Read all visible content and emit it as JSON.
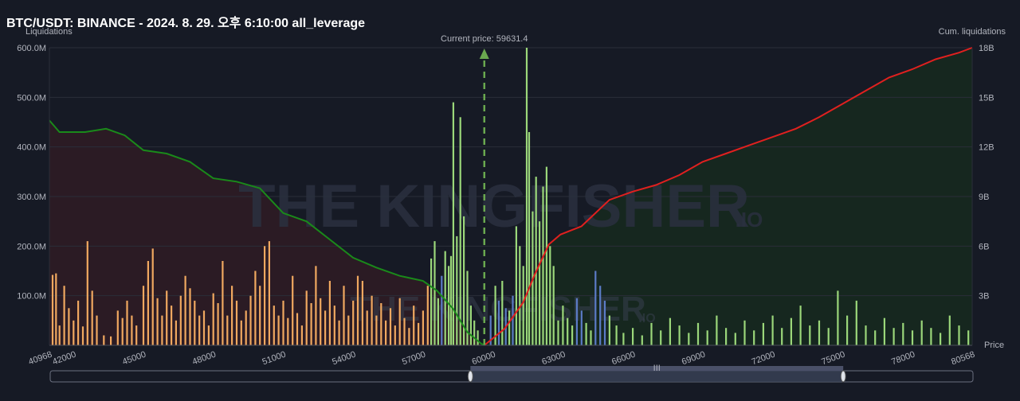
{
  "header": {
    "title": "BTC/USDT: BINANCE - 2024. 8. 29. 오후 6:10:00 all_leverage"
  },
  "watermark": {
    "brand": "THE KINGFISHER",
    "suffix": ".IO"
  },
  "colors": {
    "background": "#161a25",
    "short_bars": "#f0a860",
    "long_bars": "#9bd77a",
    "mid_bars": "#5b7bc6",
    "cum_short_line": "#1a8a1a",
    "cum_long_line": "#e0201f",
    "cum_short_area": "#2b1b24",
    "cum_long_area": "#16271f",
    "current_price_marker": "#6aa84f"
  },
  "chart_data": {
    "type": "bar",
    "xlabel": "Price",
    "ylabel_left": "Liquidations",
    "ylabel_right": "Cum. liquidations",
    "x_range": [
      40968,
      80568
    ],
    "x_ticks": [
      "40968",
      "42000",
      "45000",
      "48000",
      "51000",
      "54000",
      "57000",
      "60000",
      "63000",
      "66000",
      "69000",
      "72000",
      "75000",
      "78000",
      "80568"
    ],
    "left_ticks": [
      "100.0M",
      "200.0M",
      "300.0M",
      "400.0M",
      "500.0M",
      "600.0M"
    ],
    "left_ylim_millions": [
      0,
      600
    ],
    "right_ticks": [
      "3B",
      "6B",
      "9B",
      "12B",
      "15B",
      "18B"
    ],
    "right_ylim_billions": [
      0,
      18
    ],
    "current_price": {
      "label": "Current price: 59631.4",
      "value": 59631.4
    },
    "cum_short": {
      "name": "short side cumulative",
      "points": [
        [
          40968,
          13.6
        ],
        [
          41400,
          12.9
        ],
        [
          42500,
          12.9
        ],
        [
          43400,
          13.1
        ],
        [
          44200,
          12.7
        ],
        [
          45000,
          11.8
        ],
        [
          46000,
          11.6
        ],
        [
          47000,
          11.1
        ],
        [
          48000,
          10.1
        ],
        [
          49000,
          9.9
        ],
        [
          50000,
          9.5
        ],
        [
          51000,
          8.0
        ],
        [
          52000,
          7.5
        ],
        [
          53000,
          6.4
        ],
        [
          54000,
          5.3
        ],
        [
          55000,
          4.7
        ],
        [
          56000,
          4.2
        ],
        [
          57000,
          3.9
        ],
        [
          57600,
          3.3
        ],
        [
          58300,
          2.2
        ],
        [
          58900,
          0.8
        ],
        [
          59500,
          0.1
        ],
        [
          59631,
          0
        ]
      ]
    },
    "cum_long": {
      "name": "long side cumulative",
      "points": [
        [
          59631,
          0
        ],
        [
          60500,
          1.0
        ],
        [
          61300,
          2.6
        ],
        [
          61800,
          4.3
        ],
        [
          62400,
          6.1
        ],
        [
          62900,
          6.7
        ],
        [
          63800,
          7.2
        ],
        [
          65000,
          8.8
        ],
        [
          66000,
          9.3
        ],
        [
          67000,
          9.7
        ],
        [
          68000,
          10.3
        ],
        [
          69000,
          11.1
        ],
        [
          70000,
          11.6
        ],
        [
          71000,
          12.1
        ],
        [
          72000,
          12.6
        ],
        [
          73000,
          13.1
        ],
        [
          74000,
          13.8
        ],
        [
          75000,
          14.6
        ],
        [
          76000,
          15.4
        ],
        [
          77000,
          16.2
        ],
        [
          78000,
          16.7
        ],
        [
          79000,
          17.3
        ],
        [
          80000,
          17.7
        ],
        [
          80568,
          18.0
        ]
      ]
    },
    "bars": [
      {
        "price": 41100,
        "value": 142,
        "side": "short"
      },
      {
        "price": 41250,
        "value": 145,
        "side": "short"
      },
      {
        "price": 41400,
        "value": 40,
        "side": "short"
      },
      {
        "price": 41600,
        "value": 120,
        "side": "short"
      },
      {
        "price": 41800,
        "value": 75,
        "side": "short"
      },
      {
        "price": 42000,
        "value": 50,
        "side": "short"
      },
      {
        "price": 42200,
        "value": 90,
        "side": "short"
      },
      {
        "price": 42400,
        "value": 38,
        "side": "short"
      },
      {
        "price": 42600,
        "value": 210,
        "side": "short"
      },
      {
        "price": 42800,
        "value": 110,
        "side": "short"
      },
      {
        "price": 43000,
        "value": 60,
        "side": "short"
      },
      {
        "price": 43300,
        "value": 20,
        "side": "short"
      },
      {
        "price": 43600,
        "value": 18,
        "side": "short"
      },
      {
        "price": 43900,
        "value": 70,
        "side": "short"
      },
      {
        "price": 44100,
        "value": 55,
        "side": "short"
      },
      {
        "price": 44300,
        "value": 90,
        "side": "short"
      },
      {
        "price": 44500,
        "value": 60,
        "side": "short"
      },
      {
        "price": 44700,
        "value": 40,
        "side": "short"
      },
      {
        "price": 45000,
        "value": 120,
        "side": "short"
      },
      {
        "price": 45200,
        "value": 170,
        "side": "short"
      },
      {
        "price": 45400,
        "value": 195,
        "side": "short"
      },
      {
        "price": 45600,
        "value": 95,
        "side": "short"
      },
      {
        "price": 45800,
        "value": 60,
        "side": "short"
      },
      {
        "price": 46000,
        "value": 110,
        "side": "short"
      },
      {
        "price": 46200,
        "value": 80,
        "side": "short"
      },
      {
        "price": 46400,
        "value": 50,
        "side": "short"
      },
      {
        "price": 46600,
        "value": 100,
        "side": "short"
      },
      {
        "price": 46800,
        "value": 140,
        "side": "short"
      },
      {
        "price": 47000,
        "value": 115,
        "side": "short"
      },
      {
        "price": 47200,
        "value": 90,
        "side": "short"
      },
      {
        "price": 47400,
        "value": 60,
        "side": "short"
      },
      {
        "price": 47600,
        "value": 70,
        "side": "short"
      },
      {
        "price": 47800,
        "value": 40,
        "side": "short"
      },
      {
        "price": 48000,
        "value": 105,
        "side": "short"
      },
      {
        "price": 48200,
        "value": 85,
        "side": "short"
      },
      {
        "price": 48400,
        "value": 170,
        "side": "short"
      },
      {
        "price": 48600,
        "value": 60,
        "side": "short"
      },
      {
        "price": 48800,
        "value": 120,
        "side": "short"
      },
      {
        "price": 49000,
        "value": 90,
        "side": "short"
      },
      {
        "price": 49200,
        "value": 50,
        "side": "short"
      },
      {
        "price": 49400,
        "value": 70,
        "side": "short"
      },
      {
        "price": 49600,
        "value": 100,
        "side": "short"
      },
      {
        "price": 49800,
        "value": 150,
        "side": "short"
      },
      {
        "price": 50000,
        "value": 120,
        "side": "short"
      },
      {
        "price": 50200,
        "value": 200,
        "side": "short"
      },
      {
        "price": 50400,
        "value": 210,
        "side": "short"
      },
      {
        "price": 50600,
        "value": 80,
        "side": "short"
      },
      {
        "price": 50800,
        "value": 60,
        "side": "short"
      },
      {
        "price": 51000,
        "value": 90,
        "side": "short"
      },
      {
        "price": 51200,
        "value": 55,
        "side": "short"
      },
      {
        "price": 51400,
        "value": 140,
        "side": "short"
      },
      {
        "price": 51600,
        "value": 65,
        "side": "short"
      },
      {
        "price": 51800,
        "value": 40,
        "side": "short"
      },
      {
        "price": 52000,
        "value": 110,
        "side": "short"
      },
      {
        "price": 52200,
        "value": 85,
        "side": "short"
      },
      {
        "price": 52400,
        "value": 160,
        "side": "short"
      },
      {
        "price": 52600,
        "value": 95,
        "side": "short"
      },
      {
        "price": 52800,
        "value": 70,
        "side": "short"
      },
      {
        "price": 53000,
        "value": 130,
        "side": "short"
      },
      {
        "price": 53200,
        "value": 80,
        "side": "short"
      },
      {
        "price": 53400,
        "value": 50,
        "side": "short"
      },
      {
        "price": 53600,
        "value": 120,
        "side": "short"
      },
      {
        "price": 53800,
        "value": 60,
        "side": "short"
      },
      {
        "price": 54000,
        "value": 90,
        "side": "short"
      },
      {
        "price": 54200,
        "value": 140,
        "side": "short"
      },
      {
        "price": 54400,
        "value": 130,
        "side": "short"
      },
      {
        "price": 54600,
        "value": 70,
        "side": "short"
      },
      {
        "price": 54800,
        "value": 100,
        "side": "short"
      },
      {
        "price": 55000,
        "value": 60,
        "side": "short"
      },
      {
        "price": 55200,
        "value": 85,
        "side": "short"
      },
      {
        "price": 55400,
        "value": 50,
        "side": "short"
      },
      {
        "price": 55600,
        "value": 75,
        "side": "short"
      },
      {
        "price": 55800,
        "value": 40,
        "side": "short"
      },
      {
        "price": 56000,
        "value": 95,
        "side": "short"
      },
      {
        "price": 56200,
        "value": 55,
        "side": "short"
      },
      {
        "price": 56400,
        "value": 35,
        "side": "short"
      },
      {
        "price": 56600,
        "value": 80,
        "side": "short"
      },
      {
        "price": 56800,
        "value": 45,
        "side": "short"
      },
      {
        "price": 57000,
        "value": 70,
        "side": "short"
      },
      {
        "price": 57200,
        "value": 120,
        "side": "short"
      },
      {
        "price": 57350,
        "value": 175,
        "side": "long"
      },
      {
        "price": 57500,
        "value": 210,
        "side": "long"
      },
      {
        "price": 57650,
        "value": 95,
        "side": "long"
      },
      {
        "price": 57800,
        "value": 140,
        "side": "mid"
      },
      {
        "price": 57950,
        "value": 190,
        "side": "long"
      },
      {
        "price": 58100,
        "value": 160,
        "side": "long"
      },
      {
        "price": 58200,
        "value": 180,
        "side": "long"
      },
      {
        "price": 58300,
        "value": 490,
        "side": "long"
      },
      {
        "price": 58450,
        "value": 220,
        "side": "long"
      },
      {
        "price": 58600,
        "value": 460,
        "side": "long"
      },
      {
        "price": 58750,
        "value": 260,
        "side": "long"
      },
      {
        "price": 58900,
        "value": 150,
        "side": "long"
      },
      {
        "price": 59050,
        "value": 80,
        "side": "long"
      },
      {
        "price": 59200,
        "value": 50,
        "side": "long"
      },
      {
        "price": 59350,
        "value": 30,
        "side": "long"
      },
      {
        "price": 59900,
        "value": 60,
        "side": "mid"
      },
      {
        "price": 60100,
        "value": 120,
        "side": "long"
      },
      {
        "price": 60250,
        "value": 90,
        "side": "mid"
      },
      {
        "price": 60400,
        "value": 130,
        "side": "long"
      },
      {
        "price": 60550,
        "value": 75,
        "side": "mid"
      },
      {
        "price": 60700,
        "value": 70,
        "side": "long"
      },
      {
        "price": 60850,
        "value": 100,
        "side": "mid"
      },
      {
        "price": 61000,
        "value": 240,
        "side": "long"
      },
      {
        "price": 61150,
        "value": 200,
        "side": "long"
      },
      {
        "price": 61300,
        "value": 160,
        "side": "long"
      },
      {
        "price": 61450,
        "value": 600,
        "side": "long"
      },
      {
        "price": 61550,
        "value": 430,
        "side": "long"
      },
      {
        "price": 61700,
        "value": 270,
        "side": "long"
      },
      {
        "price": 61850,
        "value": 340,
        "side": "long"
      },
      {
        "price": 62000,
        "value": 250,
        "side": "long"
      },
      {
        "price": 62150,
        "value": 320,
        "side": "long"
      },
      {
        "price": 62300,
        "value": 360,
        "side": "long"
      },
      {
        "price": 62450,
        "value": 200,
        "side": "long"
      },
      {
        "price": 62600,
        "value": 160,
        "side": "long"
      },
      {
        "price": 62800,
        "value": 50,
        "side": "long"
      },
      {
        "price": 63000,
        "value": 80,
        "side": "long"
      },
      {
        "price": 63200,
        "value": 55,
        "side": "long"
      },
      {
        "price": 63400,
        "value": 40,
        "side": "long"
      },
      {
        "price": 63600,
        "value": 95,
        "side": "mid"
      },
      {
        "price": 63800,
        "value": 70,
        "side": "mid"
      },
      {
        "price": 64000,
        "value": 45,
        "side": "long"
      },
      {
        "price": 64200,
        "value": 30,
        "side": "long"
      },
      {
        "price": 64400,
        "value": 150,
        "side": "mid"
      },
      {
        "price": 64600,
        "value": 120,
        "side": "mid"
      },
      {
        "price": 64800,
        "value": 90,
        "side": "mid"
      },
      {
        "price": 65000,
        "value": 60,
        "side": "long"
      },
      {
        "price": 65300,
        "value": 40,
        "side": "long"
      },
      {
        "price": 65600,
        "value": 25,
        "side": "long"
      },
      {
        "price": 66000,
        "value": 35,
        "side": "long"
      },
      {
        "price": 66400,
        "value": 20,
        "side": "long"
      },
      {
        "price": 66800,
        "value": 45,
        "side": "long"
      },
      {
        "price": 67200,
        "value": 30,
        "side": "long"
      },
      {
        "price": 67600,
        "value": 55,
        "side": "long"
      },
      {
        "price": 68000,
        "value": 40,
        "side": "long"
      },
      {
        "price": 68400,
        "value": 25,
        "side": "long"
      },
      {
        "price": 68800,
        "value": 45,
        "side": "long"
      },
      {
        "price": 69200,
        "value": 30,
        "side": "long"
      },
      {
        "price": 69600,
        "value": 60,
        "side": "long"
      },
      {
        "price": 70000,
        "value": 35,
        "side": "long"
      },
      {
        "price": 70400,
        "value": 25,
        "side": "long"
      },
      {
        "price": 70800,
        "value": 50,
        "side": "long"
      },
      {
        "price": 71200,
        "value": 30,
        "side": "long"
      },
      {
        "price": 71600,
        "value": 45,
        "side": "long"
      },
      {
        "price": 72000,
        "value": 60,
        "side": "long"
      },
      {
        "price": 72400,
        "value": 35,
        "side": "long"
      },
      {
        "price": 72800,
        "value": 55,
        "side": "long"
      },
      {
        "price": 73200,
        "value": 80,
        "side": "long"
      },
      {
        "price": 73600,
        "value": 40,
        "side": "long"
      },
      {
        "price": 74000,
        "value": 50,
        "side": "long"
      },
      {
        "price": 74400,
        "value": 35,
        "side": "long"
      },
      {
        "price": 74800,
        "value": 110,
        "side": "long"
      },
      {
        "price": 75200,
        "value": 60,
        "side": "long"
      },
      {
        "price": 75600,
        "value": 90,
        "side": "long"
      },
      {
        "price": 76000,
        "value": 40,
        "side": "long"
      },
      {
        "price": 76400,
        "value": 30,
        "side": "long"
      },
      {
        "price": 76800,
        "value": 55,
        "side": "long"
      },
      {
        "price": 77200,
        "value": 35,
        "side": "long"
      },
      {
        "price": 77600,
        "value": 45,
        "side": "long"
      },
      {
        "price": 78000,
        "value": 30,
        "side": "long"
      },
      {
        "price": 78400,
        "value": 50,
        "side": "long"
      },
      {
        "price": 78800,
        "value": 35,
        "side": "long"
      },
      {
        "price": 79200,
        "value": 25,
        "side": "long"
      },
      {
        "price": 79600,
        "value": 60,
        "side": "long"
      },
      {
        "price": 80000,
        "value": 40,
        "side": "long"
      },
      {
        "price": 80400,
        "value": 30,
        "side": "long"
      }
    ]
  },
  "scrollbar": {
    "grip_label": "III",
    "window_start_price": 59000,
    "window_end_price": 75000
  }
}
